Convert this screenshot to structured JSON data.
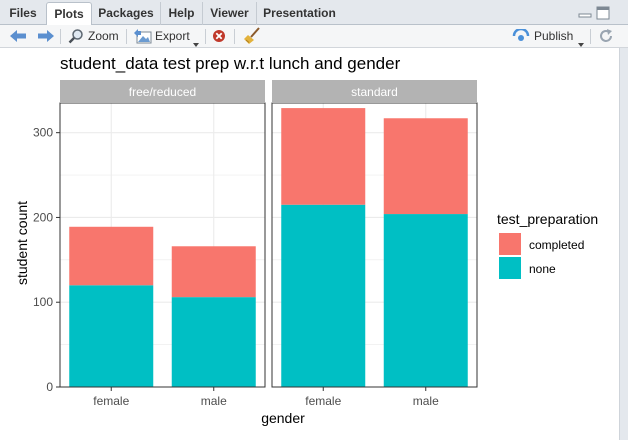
{
  "tabs": [
    "Files",
    "Plots",
    "Packages",
    "Help",
    "Viewer",
    "Presentation"
  ],
  "active_tab": "Plots",
  "toolbar": {
    "zoom_label": "Zoom",
    "export_label": "Export",
    "publish_label": "Publish"
  },
  "icons": {
    "back": "arrow-left-icon",
    "forward": "arrow-right-icon",
    "zoom": "magnifier-icon",
    "export": "export-image-icon",
    "remove": "remove-plot-icon",
    "clear": "broom-icon",
    "publish": "publish-icon",
    "refresh": "refresh-icon"
  },
  "colors": {
    "completed": "#F8766D",
    "none": "#00BFC4",
    "strip": "#b3b3b3",
    "grid": "#ebebeb"
  },
  "chart_data": {
    "type": "bar",
    "stacked": true,
    "title": "student_data test prep w.r.t lunch and gender",
    "xlabel": "gender",
    "ylabel": "student count",
    "ylim": [
      0,
      335
    ],
    "yticks": [
      0,
      100,
      200,
      300
    ],
    "categories": [
      "female",
      "male"
    ],
    "facets": [
      {
        "label": "free/reduced",
        "series": [
          {
            "name": "none",
            "values": [
              120,
              106
            ]
          },
          {
            "name": "completed",
            "values": [
              69,
              60
            ]
          }
        ]
      },
      {
        "label": "standard",
        "series": [
          {
            "name": "none",
            "values": [
              215,
              204
            ]
          },
          {
            "name": "completed",
            "values": [
              114,
              113
            ]
          }
        ]
      }
    ],
    "legend": {
      "title": "test_preparation",
      "entries": [
        "completed",
        "none"
      ],
      "position": "right"
    },
    "grid": true
  }
}
